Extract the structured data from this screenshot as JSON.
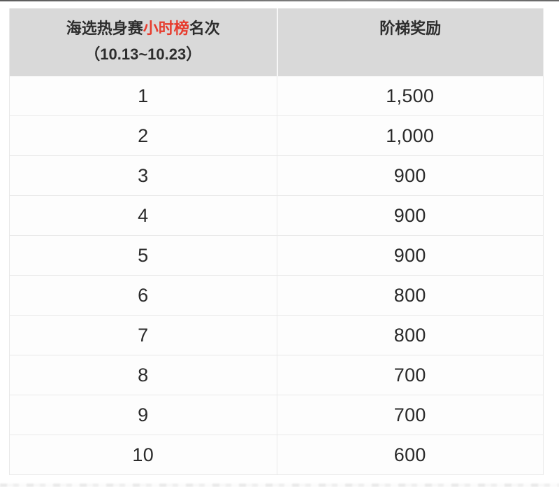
{
  "table": {
    "header": {
      "col1_line1_prefix": "海选热身赛",
      "col1_line1_highlight": "小时榜",
      "col1_line1_suffix": "名次",
      "col1_line2": "（10.13~10.23）",
      "col2": "阶梯奖励"
    },
    "rows": [
      {
        "rank": "1",
        "reward": "1,500"
      },
      {
        "rank": "2",
        "reward": "1,000"
      },
      {
        "rank": "3",
        "reward": "900"
      },
      {
        "rank": "4",
        "reward": "900"
      },
      {
        "rank": "5",
        "reward": "900"
      },
      {
        "rank": "6",
        "reward": "800"
      },
      {
        "rank": "7",
        "reward": "800"
      },
      {
        "rank": "8",
        "reward": "700"
      },
      {
        "rank": "9",
        "reward": "700"
      },
      {
        "rank": "10",
        "reward": "600"
      }
    ]
  },
  "colors": {
    "highlight_red": "#e73b2d",
    "header_bg": "#d9d9d9",
    "border": "#e9e9e9",
    "text": "#2b2b2b",
    "page_bg": "#ffffff"
  }
}
